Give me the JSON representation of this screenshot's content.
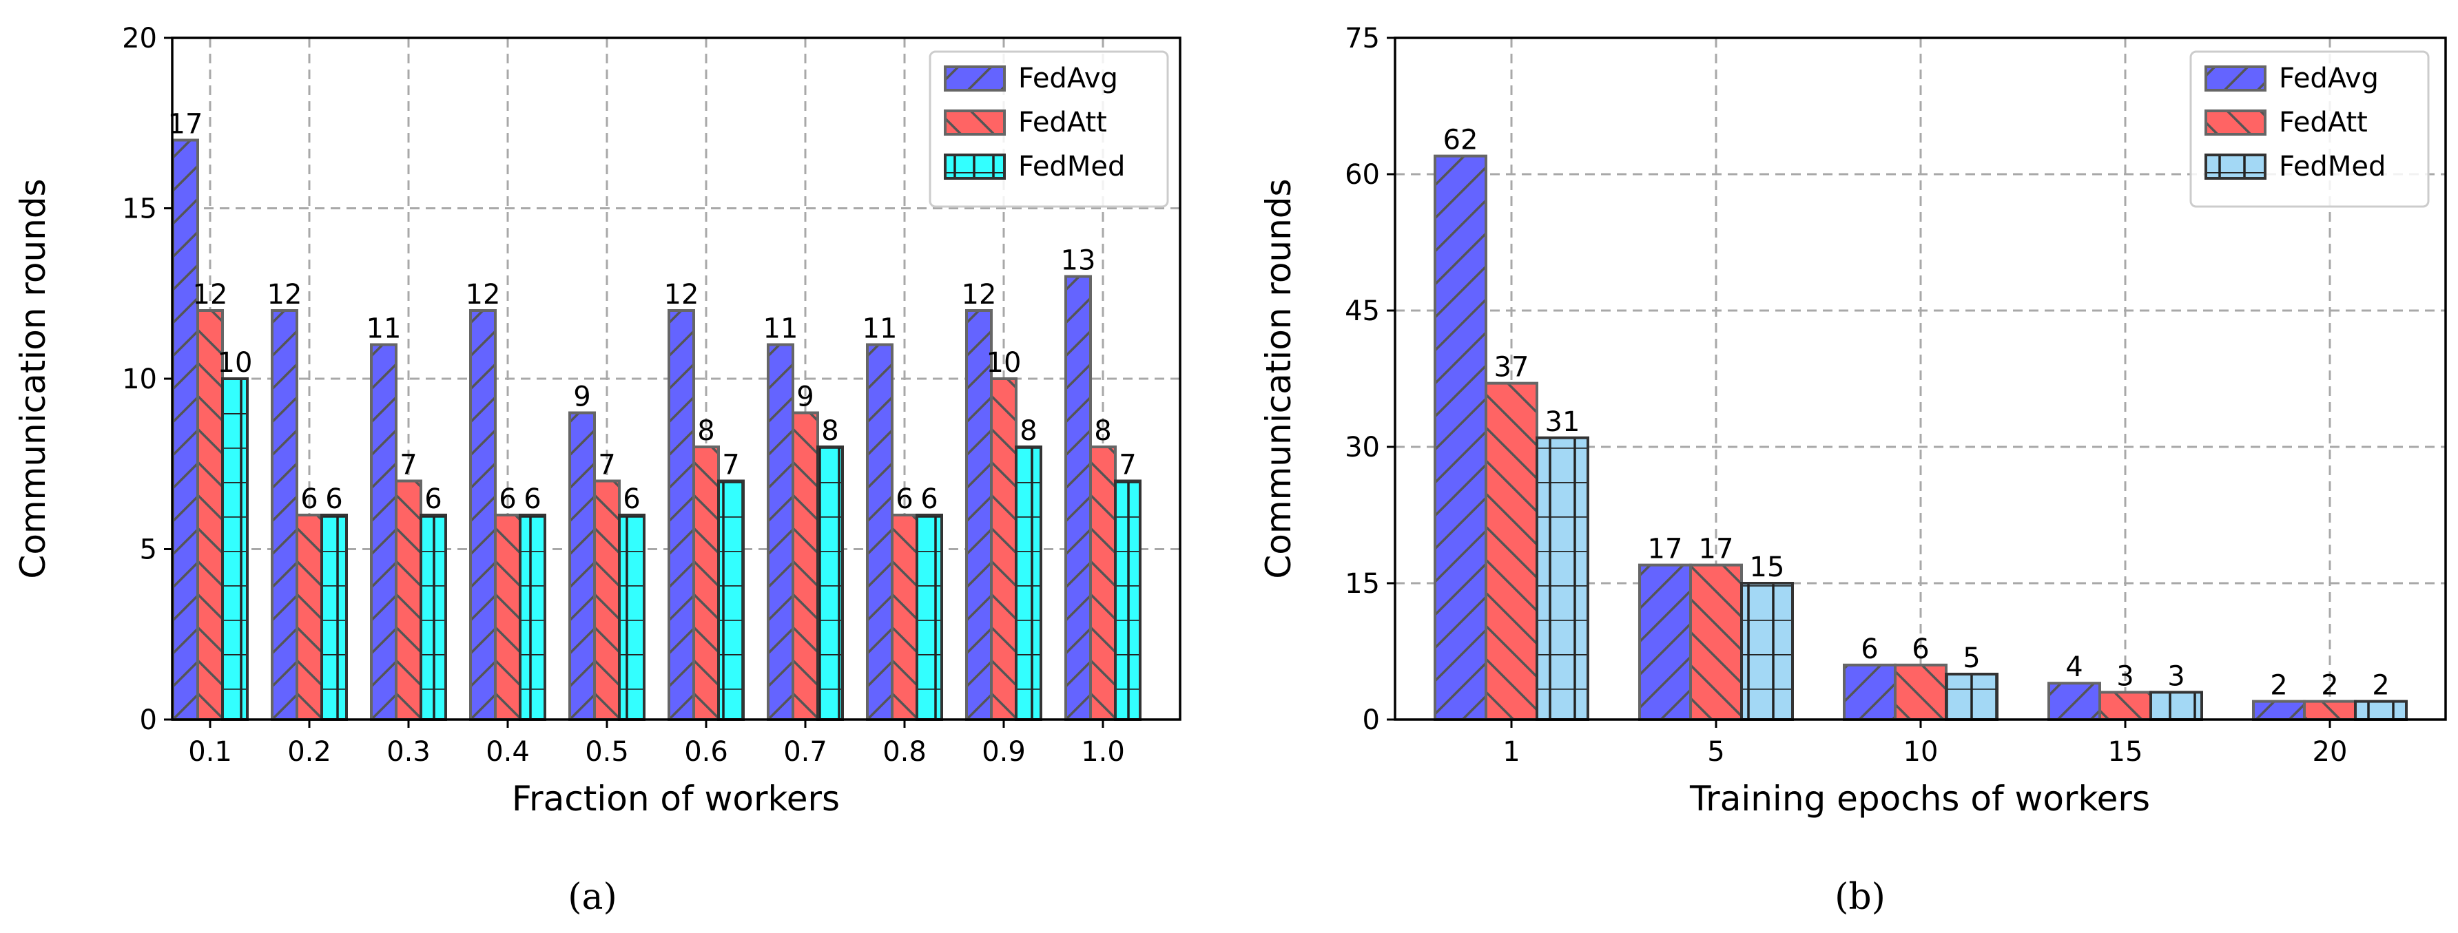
{
  "colors": {
    "FedAvg": "#6464ff",
    "FedAtt": "#ff6464",
    "FedMed_a": "#33ffff",
    "FedMed_b": "#a3d8f5",
    "edge_dark": "#333333",
    "edge_gray": "#666666",
    "grid": "#a8a8a8"
  },
  "chart_data": [
    {
      "type": "bar",
      "caption": "(a)",
      "title": "",
      "xlabel": "Fraction of workers",
      "ylabel": "Communication rounds",
      "ylim": [
        0,
        20
      ],
      "yticks": [
        0,
        5,
        10,
        15,
        20
      ],
      "grid": true,
      "legend_position": "top-right",
      "categories": [
        "0.1",
        "0.2",
        "0.3",
        "0.4",
        "0.5",
        "0.6",
        "0.7",
        "0.8",
        "0.9",
        "1.0"
      ],
      "series": [
        {
          "name": "FedAvg",
          "values": [
            17,
            12,
            11,
            12,
            9,
            12,
            11,
            11,
            12,
            13
          ],
          "hatch": "diagonal-up"
        },
        {
          "name": "FedAtt",
          "values": [
            12,
            6,
            7,
            6,
            7,
            8,
            9,
            6,
            10,
            8
          ],
          "hatch": "diagonal-down"
        },
        {
          "name": "FedMed",
          "values": [
            10,
            6,
            6,
            6,
            6,
            7,
            8,
            6,
            8,
            7
          ],
          "hatch": "grid"
        }
      ]
    },
    {
      "type": "bar",
      "caption": "(b)",
      "title": "",
      "xlabel": "Training epochs of workers",
      "ylabel": "Communication rounds",
      "ylim": [
        0,
        75
      ],
      "yticks": [
        0,
        15,
        30,
        45,
        60,
        75
      ],
      "grid": true,
      "legend_position": "top-right",
      "categories": [
        "1",
        "5",
        "10",
        "15",
        "20"
      ],
      "series": [
        {
          "name": "FedAvg",
          "values": [
            62,
            17,
            6,
            4,
            2
          ],
          "hatch": "diagonal-up"
        },
        {
          "name": "FedAtt",
          "values": [
            37,
            17,
            6,
            3,
            2
          ],
          "hatch": "diagonal-down"
        },
        {
          "name": "FedMed",
          "values": [
            31,
            15,
            5,
            3,
            2
          ],
          "hatch": "grid"
        }
      ]
    }
  ]
}
